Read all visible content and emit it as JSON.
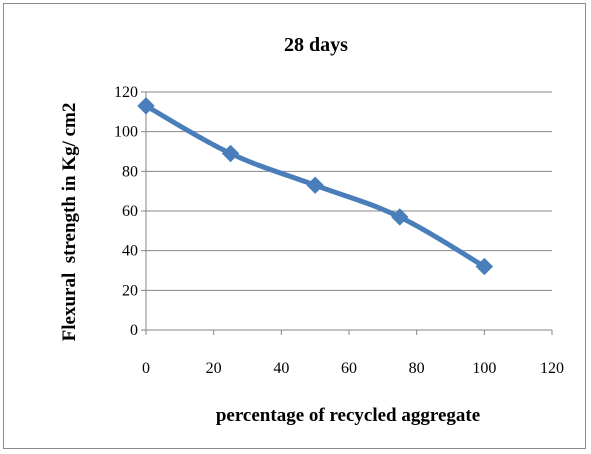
{
  "chart_data": {
    "type": "line",
    "title": "28 days",
    "xlabel": "percentage of recycled aggregate",
    "ylabel": "Flexural  strength in Kg/ cm2",
    "x": [
      0,
      25,
      50,
      75,
      100
    ],
    "series": [
      {
        "values": [
          113,
          89,
          73,
          57,
          32
        ]
      }
    ],
    "xlim": [
      0,
      120
    ],
    "ylim": [
      0,
      120
    ],
    "xticks": [
      "0",
      "20",
      "40",
      "60",
      "80",
      "100",
      "120"
    ],
    "yticks": [
      "0",
      "20",
      "40",
      "60",
      "80",
      "100",
      "120"
    ],
    "grid": "horizontal",
    "legend": "none",
    "marker": "diamond",
    "series_color": "#4a7ebb"
  }
}
